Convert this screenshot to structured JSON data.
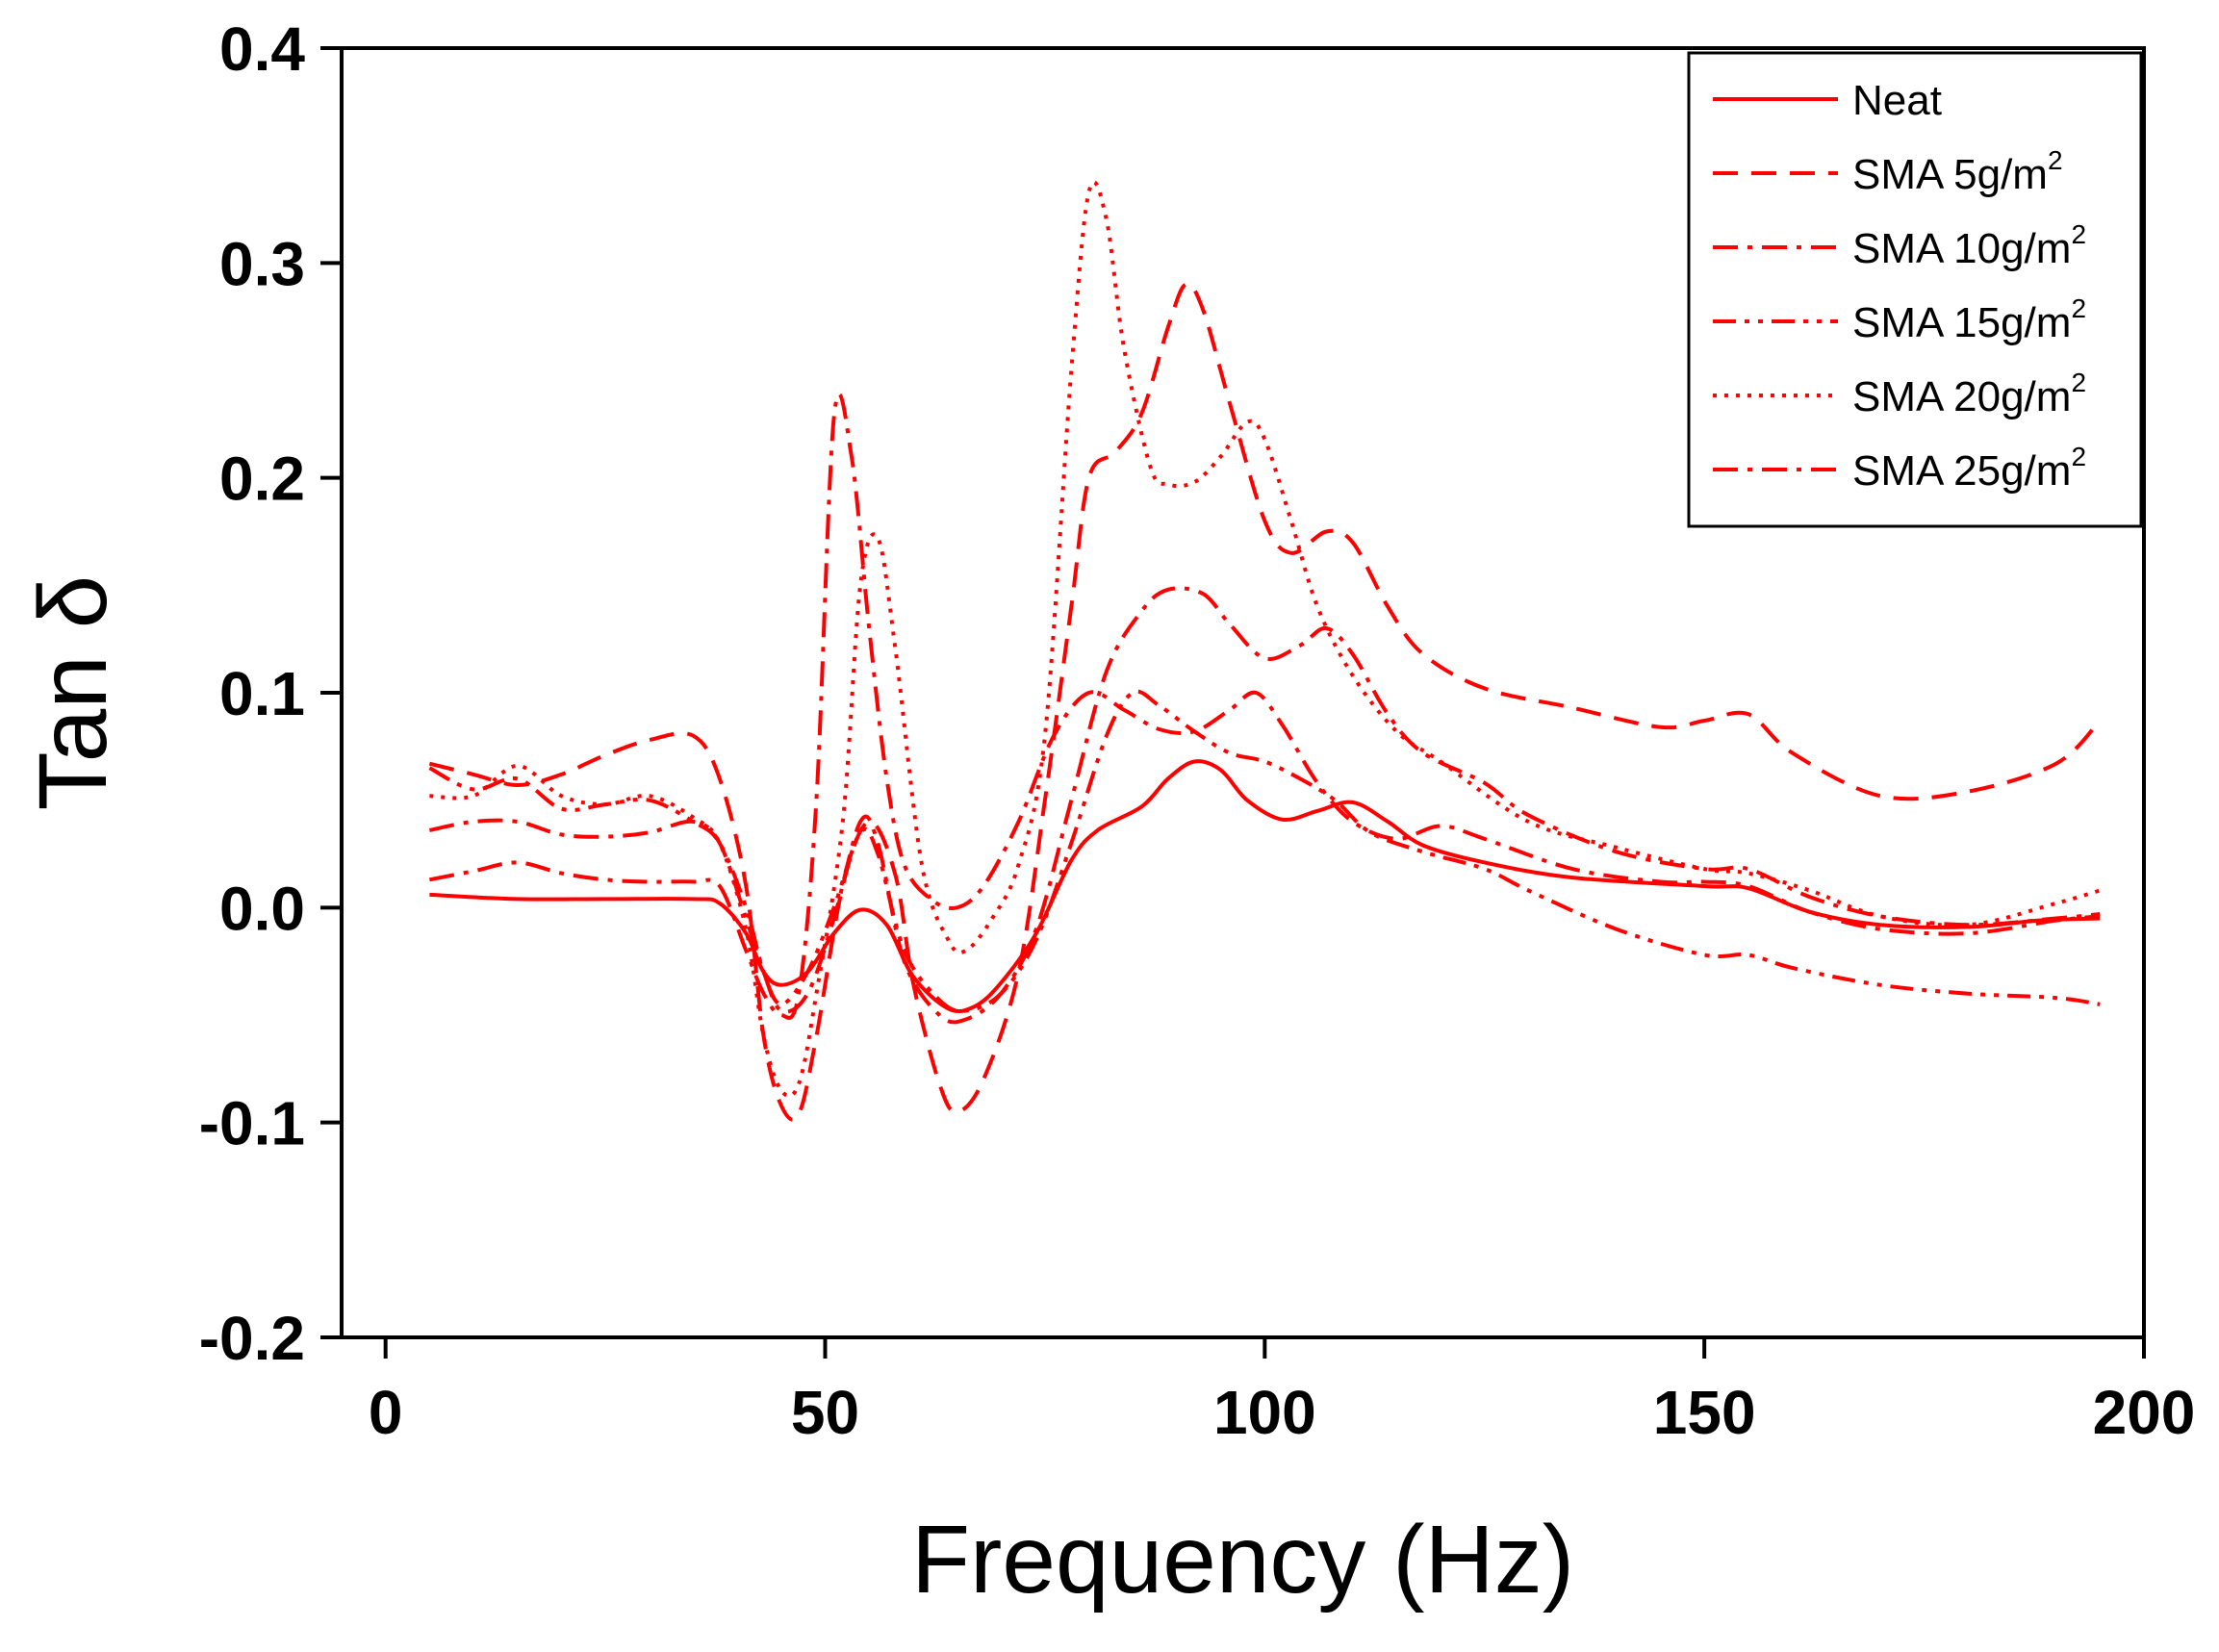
{
  "chart_data": {
    "type": "line",
    "title": "",
    "xlabel": "Frequency (Hz)",
    "ylabel": "Tan δ",
    "xlim": [
      -5,
      200
    ],
    "ylim": [
      -0.2,
      0.4
    ],
    "xticks": [
      0,
      50,
      100,
      150,
      200
    ],
    "xtick_labels": [
      "0",
      "50",
      "100",
      "150",
      "200"
    ],
    "yticks": [
      -0.2,
      -0.1,
      0.0,
      0.1,
      0.2,
      0.3,
      0.4
    ],
    "ytick_labels": [
      "-0.2",
      "-0.1",
      "0.0",
      "0.1",
      "0.2",
      "0.3",
      "0.4"
    ],
    "color": "#ff0000",
    "legend_position": "top-right",
    "series": [
      {
        "name": "Neat",
        "label_main": "Neat",
        "label_sup": "",
        "style": "solid",
        "points": [
          [
            5,
            0.006
          ],
          [
            15,
            0.004
          ],
          [
            25,
            0.004
          ],
          [
            35,
            0.004
          ],
          [
            38,
            0.002
          ],
          [
            41,
            -0.012
          ],
          [
            43,
            -0.03
          ],
          [
            45,
            -0.036
          ],
          [
            48,
            -0.03
          ],
          [
            51,
            -0.012
          ],
          [
            54,
            -0.001
          ],
          [
            57,
            -0.008
          ],
          [
            60,
            -0.032
          ],
          [
            64,
            -0.047
          ],
          [
            67,
            -0.046
          ],
          [
            70,
            -0.035
          ],
          [
            74,
            -0.012
          ],
          [
            78,
            0.022
          ],
          [
            81,
            0.036
          ],
          [
            86,
            0.047
          ],
          [
            89,
            0.06
          ],
          [
            92,
            0.068
          ],
          [
            95,
            0.064
          ],
          [
            98,
            0.05
          ],
          [
            102,
            0.041
          ],
          [
            106,
            0.045
          ],
          [
            110,
            0.049
          ],
          [
            114,
            0.04
          ],
          [
            118,
            0.029
          ],
          [
            125,
            0.021
          ],
          [
            135,
            0.014
          ],
          [
            150,
            0.01
          ],
          [
            155,
            0.009
          ],
          [
            162,
            -0.002
          ],
          [
            170,
            -0.008
          ],
          [
            180,
            -0.009
          ],
          [
            188,
            -0.006
          ],
          [
            195,
            -0.005
          ]
        ]
      },
      {
        "name": "SMA 5g/m2",
        "label_main": "SMA 5g/m",
        "label_sup": "2",
        "style": "dashed",
        "points": [
          [
            5,
            0.067
          ],
          [
            10,
            0.062
          ],
          [
            15,
            0.057
          ],
          [
            20,
            0.062
          ],
          [
            25,
            0.071
          ],
          [
            30,
            0.078
          ],
          [
            35,
            0.08
          ],
          [
            38,
            0.06
          ],
          [
            41,
            0.01
          ],
          [
            43,
            -0.06
          ],
          [
            45,
            -0.092
          ],
          [
            47,
            -0.096
          ],
          [
            49,
            -0.06
          ],
          [
            52,
            0.01
          ],
          [
            55,
            0.04
          ],
          [
            58,
            0.015
          ],
          [
            60,
            -0.035
          ],
          [
            63,
            -0.082
          ],
          [
            65,
            -0.095
          ],
          [
            68,
            -0.08
          ],
          [
            72,
            -0.03
          ],
          [
            75,
            0.05
          ],
          [
            78,
            0.14
          ],
          [
            80,
            0.2
          ],
          [
            83,
            0.212
          ],
          [
            86,
            0.23
          ],
          [
            89,
            0.27
          ],
          [
            91,
            0.29
          ],
          [
            93,
            0.278
          ],
          [
            96,
            0.235
          ],
          [
            100,
            0.18
          ],
          [
            103,
            0.165
          ],
          [
            107,
            0.175
          ],
          [
            110,
            0.17
          ],
          [
            114,
            0.14
          ],
          [
            118,
            0.118
          ],
          [
            125,
            0.102
          ],
          [
            135,
            0.093
          ],
          [
            145,
            0.084
          ],
          [
            150,
            0.087
          ],
          [
            155,
            0.09
          ],
          [
            160,
            0.072
          ],
          [
            170,
            0.052
          ],
          [
            180,
            0.054
          ],
          [
            190,
            0.067
          ],
          [
            195,
            0.087
          ]
        ]
      },
      {
        "name": "SMA 10g/m2",
        "label_main": "SMA 10g/m",
        "label_sup": "2",
        "style": "dashdot",
        "points": [
          [
            5,
            0.036
          ],
          [
            10,
            0.04
          ],
          [
            15,
            0.04
          ],
          [
            20,
            0.034
          ],
          [
            25,
            0.033
          ],
          [
            30,
            0.035
          ],
          [
            35,
            0.04
          ],
          [
            38,
            0.03
          ],
          [
            41,
            -0.005
          ],
          [
            43,
            -0.03
          ],
          [
            45,
            -0.048
          ],
          [
            48,
            -0.04
          ],
          [
            51,
            -0.005
          ],
          [
            54,
            0.04
          ],
          [
            56,
            0.03
          ],
          [
            59,
            -0.025
          ],
          [
            63,
            -0.05
          ],
          [
            66,
            -0.052
          ],
          [
            70,
            -0.04
          ],
          [
            74,
            -0.01
          ],
          [
            78,
            0.05
          ],
          [
            82,
            0.11
          ],
          [
            86,
            0.138
          ],
          [
            89,
            0.148
          ],
          [
            93,
            0.146
          ],
          [
            96,
            0.132
          ],
          [
            100,
            0.116
          ],
          [
            104,
            0.122
          ],
          [
            107,
            0.13
          ],
          [
            110,
            0.118
          ],
          [
            114,
            0.09
          ],
          [
            118,
            0.072
          ],
          [
            125,
            0.058
          ],
          [
            130,
            0.043
          ],
          [
            140,
            0.026
          ],
          [
            150,
            0.018
          ],
          [
            155,
            0.018
          ],
          [
            162,
            0.005
          ],
          [
            170,
            -0.004
          ],
          [
            180,
            -0.008
          ],
          [
            190,
            -0.005
          ],
          [
            195,
            -0.003
          ]
        ]
      },
      {
        "name": "SMA 15g/m2",
        "label_main": "SMA 15g/m",
        "label_sup": "2",
        "style": "dashdotdot",
        "points": [
          [
            5,
            0.065
          ],
          [
            10,
            0.055
          ],
          [
            15,
            0.06
          ],
          [
            20,
            0.046
          ],
          [
            25,
            0.048
          ],
          [
            30,
            0.05
          ],
          [
            35,
            0.04
          ],
          [
            38,
            0.03
          ],
          [
            41,
            0.0
          ],
          [
            43,
            -0.03
          ],
          [
            45,
            -0.045
          ],
          [
            48,
            -0.03
          ],
          [
            51,
            0.0
          ],
          [
            54,
            0.035
          ],
          [
            56,
            0.025
          ],
          [
            59,
            -0.02
          ],
          [
            63,
            -0.043
          ],
          [
            66,
            -0.048
          ],
          [
            70,
            -0.04
          ],
          [
            74,
            -0.015
          ],
          [
            78,
            0.03
          ],
          [
            82,
            0.08
          ],
          [
            85,
            0.1
          ],
          [
            88,
            0.094
          ],
          [
            92,
            0.082
          ],
          [
            96,
            0.072
          ],
          [
            100,
            0.068
          ],
          [
            104,
            0.06
          ],
          [
            108,
            0.05
          ],
          [
            112,
            0.035
          ],
          [
            118,
            0.026
          ],
          [
            125,
            0.018
          ],
          [
            130,
            0.008
          ],
          [
            140,
            -0.01
          ],
          [
            150,
            -0.022
          ],
          [
            155,
            -0.022
          ],
          [
            160,
            -0.028
          ],
          [
            170,
            -0.036
          ],
          [
            180,
            -0.04
          ],
          [
            190,
            -0.042
          ],
          [
            195,
            -0.045
          ]
        ]
      },
      {
        "name": "SMA 20g/m2",
        "label_main": "SMA 20g/m",
        "label_sup": "2",
        "style": "dotted",
        "points": [
          [
            5,
            0.052
          ],
          [
            10,
            0.052
          ],
          [
            15,
            0.066
          ],
          [
            20,
            0.052
          ],
          [
            25,
            0.048
          ],
          [
            30,
            0.052
          ],
          [
            35,
            0.042
          ],
          [
            38,
            0.03
          ],
          [
            41,
            -0.01
          ],
          [
            43,
            -0.06
          ],
          [
            45,
            -0.085
          ],
          [
            47,
            -0.082
          ],
          [
            49,
            -0.04
          ],
          [
            52,
            0.04
          ],
          [
            54,
            0.15
          ],
          [
            56,
            0.172
          ],
          [
            58,
            0.12
          ],
          [
            61,
            0.02
          ],
          [
            64,
            -0.015
          ],
          [
            66,
            -0.02
          ],
          [
            69,
            -0.005
          ],
          [
            72,
            0.02
          ],
          [
            75,
            0.08
          ],
          [
            78,
            0.25
          ],
          [
            80,
            0.333
          ],
          [
            82,
            0.32
          ],
          [
            84,
            0.26
          ],
          [
            87,
            0.205
          ],
          [
            89,
            0.197
          ],
          [
            92,
            0.198
          ],
          [
            95,
            0.21
          ],
          [
            98,
            0.226
          ],
          [
            100,
            0.218
          ],
          [
            103,
            0.18
          ],
          [
            106,
            0.14
          ],
          [
            110,
            0.108
          ],
          [
            115,
            0.082
          ],
          [
            120,
            0.068
          ],
          [
            130,
            0.04
          ],
          [
            140,
            0.028
          ],
          [
            150,
            0.018
          ],
          [
            155,
            0.016
          ],
          [
            162,
            0.008
          ],
          [
            170,
            -0.004
          ],
          [
            180,
            -0.008
          ],
          [
            190,
            0.002
          ],
          [
            195,
            0.008
          ]
        ]
      },
      {
        "name": "SMA 25g/m2",
        "label_main": "SMA 25g/m",
        "label_sup": "2",
        "style": "dashdot",
        "points": [
          [
            5,
            0.013
          ],
          [
            10,
            0.017
          ],
          [
            15,
            0.021
          ],
          [
            20,
            0.016
          ],
          [
            25,
            0.013
          ],
          [
            30,
            0.012
          ],
          [
            35,
            0.012
          ],
          [
            38,
            0.01
          ],
          [
            41,
            -0.02
          ],
          [
            43,
            -0.04
          ],
          [
            45,
            -0.05
          ],
          [
            47,
            -0.04
          ],
          [
            49,
            0.05
          ],
          [
            51,
            0.228
          ],
          [
            53,
            0.21
          ],
          [
            55,
            0.13
          ],
          [
            57,
            0.06
          ],
          [
            59,
            0.02
          ],
          [
            62,
            0.004
          ],
          [
            65,
            0.0
          ],
          [
            68,
            0.01
          ],
          [
            72,
            0.04
          ],
          [
            76,
            0.08
          ],
          [
            80,
            0.1
          ],
          [
            84,
            0.092
          ],
          [
            88,
            0.083
          ],
          [
            92,
            0.082
          ],
          [
            96,
            0.092
          ],
          [
            99,
            0.1
          ],
          [
            102,
            0.085
          ],
          [
            106,
            0.058
          ],
          [
            110,
            0.04
          ],
          [
            115,
            0.032
          ],
          [
            120,
            0.038
          ],
          [
            125,
            0.032
          ],
          [
            135,
            0.018
          ],
          [
            145,
            0.012
          ],
          [
            150,
            0.012
          ],
          [
            155,
            0.01
          ],
          [
            162,
            -0.002
          ],
          [
            170,
            -0.01
          ],
          [
            180,
            -0.012
          ],
          [
            190,
            -0.006
          ],
          [
            195,
            -0.004
          ]
        ]
      }
    ]
  }
}
